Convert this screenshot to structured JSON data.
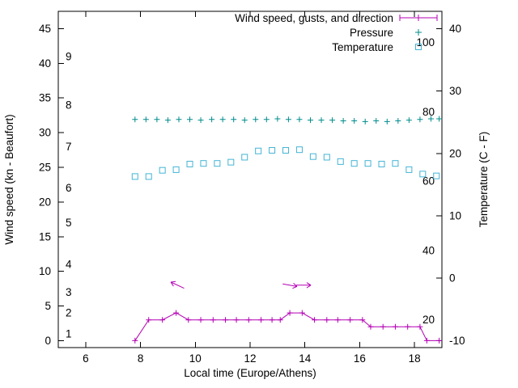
{
  "figure": {
    "background": "#ffffff",
    "border_color": "#000000",
    "text_color": "#000000"
  },
  "chart_data": {
    "type": "line",
    "title": "",
    "xlabel": "Local time (Europe/Athens)",
    "ylabel_left": "Wind speed (kn - Beaufort)",
    "ylabel_right": "Temperature (C - F)",
    "x_range": [
      5,
      19
    ],
    "y_left_range_kn": [
      -1,
      47.5
    ],
    "y_right_range_c": [
      -10,
      40
    ],
    "grid": false,
    "axes": {
      "x_ticks": [
        "6",
        "8",
        "10",
        "12",
        "14",
        "16",
        "18"
      ],
      "x_tick_values": [
        6,
        8,
        10,
        12,
        14,
        16,
        18
      ],
      "y_left_ticks": [
        "0",
        "5",
        "10",
        "15",
        "20",
        "25",
        "30",
        "35",
        "40",
        "45"
      ],
      "y_left_tick_values": [
        0,
        5,
        10,
        15,
        20,
        25,
        30,
        35,
        40,
        45
      ],
      "beaufort_scale": {
        "labels": [
          "1",
          "2",
          "3",
          "4",
          "5",
          "6",
          "7",
          "8",
          "9"
        ],
        "kn_positions": [
          1,
          4,
          7,
          11,
          17,
          22,
          28,
          34,
          41
        ]
      },
      "y_right_ticks": [
        "-10",
        "0",
        "10",
        "20",
        "30",
        "40"
      ],
      "y_right_tick_values": [
        -10,
        0,
        10,
        20,
        30,
        40
      ],
      "fahrenheit_scale": {
        "labels": [
          "20",
          "40",
          "60",
          "80",
          "100"
        ],
        "kn_positions": [
          3,
          13,
          23,
          33,
          43
        ]
      }
    },
    "legend": {
      "position": "top-inside",
      "entries": [
        {
          "label": "Wind speed, gusts, and direction",
          "marker": "errorbar-line-plus",
          "color": "#b400b4"
        },
        {
          "label": "Pressure",
          "marker": "plus",
          "color": "#008c8c"
        },
        {
          "label": "Temperature",
          "marker": "open-square",
          "color": "#44b4d5"
        }
      ]
    },
    "series": [
      {
        "name": "wind_speed",
        "unit": "kn",
        "axis": "left",
        "style": "line+plus",
        "color": "#b400b4",
        "points": [
          [
            7.8,
            0
          ],
          [
            8.3,
            3
          ],
          [
            8.8,
            3
          ],
          [
            9.3,
            4
          ],
          [
            9.75,
            3
          ],
          [
            10.2,
            3
          ],
          [
            10.65,
            3
          ],
          [
            11.1,
            3
          ],
          [
            11.5,
            3
          ],
          [
            11.95,
            3
          ],
          [
            12.4,
            3
          ],
          [
            12.8,
            3
          ],
          [
            13.1,
            3
          ],
          [
            13.45,
            4
          ],
          [
            13.9,
            4
          ],
          [
            14.35,
            3
          ],
          [
            14.8,
            3
          ],
          [
            15.2,
            3
          ],
          [
            15.65,
            3
          ],
          [
            16.1,
            3
          ],
          [
            16.4,
            2
          ],
          [
            16.85,
            2
          ],
          [
            17.3,
            2
          ],
          [
            17.75,
            2
          ],
          [
            18.2,
            2
          ],
          [
            18.45,
            0
          ],
          [
            18.9,
            0
          ]
        ]
      },
      {
        "name": "pressure",
        "unit": "plotted-on-left-axis-units",
        "axis": "left",
        "style": "plus",
        "color": "#008c8c",
        "points": [
          [
            7.8,
            31.9
          ],
          [
            8.2,
            31.9
          ],
          [
            8.6,
            31.9
          ],
          [
            9.0,
            31.8
          ],
          [
            9.4,
            31.9
          ],
          [
            9.8,
            31.9
          ],
          [
            10.2,
            31.8
          ],
          [
            10.6,
            31.9
          ],
          [
            11.0,
            31.9
          ],
          [
            11.4,
            31.9
          ],
          [
            11.8,
            31.8
          ],
          [
            12.2,
            31.9
          ],
          [
            12.6,
            31.9
          ],
          [
            13.0,
            32.0
          ],
          [
            13.4,
            31.9
          ],
          [
            13.8,
            31.9
          ],
          [
            14.2,
            31.8
          ],
          [
            14.6,
            31.8
          ],
          [
            15.0,
            31.8
          ],
          [
            15.4,
            31.7
          ],
          [
            15.8,
            31.7
          ],
          [
            16.2,
            31.6
          ],
          [
            16.6,
            31.7
          ],
          [
            17.0,
            31.6
          ],
          [
            17.4,
            31.7
          ],
          [
            17.8,
            31.8
          ],
          [
            18.2,
            31.9
          ],
          [
            18.6,
            32.0
          ],
          [
            18.9,
            32.0
          ]
        ]
      },
      {
        "name": "temperature",
        "unit": "C",
        "axis": "right",
        "style": "open-square",
        "color": "#44b4d5",
        "points": [
          [
            7.8,
            16.3
          ],
          [
            8.3,
            16.3
          ],
          [
            8.8,
            17.3
          ],
          [
            9.3,
            17.4
          ],
          [
            9.8,
            18.3
          ],
          [
            10.3,
            18.4
          ],
          [
            10.8,
            18.4
          ],
          [
            11.3,
            18.6
          ],
          [
            11.8,
            19.4
          ],
          [
            12.3,
            20.4
          ],
          [
            12.8,
            20.5
          ],
          [
            13.3,
            20.5
          ],
          [
            13.8,
            20.6
          ],
          [
            14.3,
            19.5
          ],
          [
            14.8,
            19.4
          ],
          [
            15.3,
            18.7
          ],
          [
            15.8,
            18.4
          ],
          [
            16.3,
            18.4
          ],
          [
            16.8,
            18.3
          ],
          [
            17.3,
            18.4
          ],
          [
            17.8,
            17.4
          ],
          [
            18.3,
            16.7
          ],
          [
            18.8,
            16.4
          ]
        ]
      }
    ],
    "wind_direction_arrows": [
      {
        "x": 9.35,
        "kn": 8,
        "deg": 155
      },
      {
        "x": 13.45,
        "kn": 8,
        "deg": -10
      },
      {
        "x": 13.95,
        "kn": 8,
        "deg": 0
      }
    ]
  }
}
